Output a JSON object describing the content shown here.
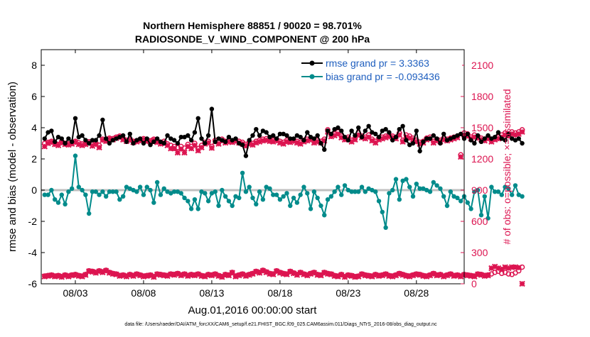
{
  "chart_data": {
    "type": "line",
    "title_line1": "Northern Hemisphere 88851 / 90020 = 98.701%",
    "title_line2": "RADIOSONDE_V_WIND_COMPONENT @ 200 hPa",
    "xlabel": "Aug.01,2016 00:00:00 start",
    "ylabel_left": "rmse and bias (model - observation)",
    "ylabel_right": "# of obs: o=possible; ×=assimilated",
    "footnote": "data file: /Users/raeder/DAI/ATM_forcXX/CAM6_setup/f.e21.FHIST_BGC.f09_025.CAM6assim.011/Diags_NTrS_2016-08/obs_diag_output.nc",
    "x_range_days": [
      0.5,
      31.5
    ],
    "x_ticks": [
      {
        "day": 3,
        "label": "08/03"
      },
      {
        "day": 8,
        "label": "08/08"
      },
      {
        "day": 13,
        "label": "08/13"
      },
      {
        "day": 18,
        "label": "08/18"
      },
      {
        "day": 23,
        "label": "08/23"
      },
      {
        "day": 28,
        "label": "08/28"
      }
    ],
    "ylim_left": [
      -6,
      9
    ],
    "y_ticks_left": [
      -6,
      -4,
      -2,
      0,
      2,
      4,
      6,
      8
    ],
    "ylim_right": [
      0,
      2250
    ],
    "y_ticks_right": [
      0,
      300,
      600,
      900,
      1200,
      1500,
      1800,
      2100
    ],
    "x_start_day": 0.75,
    "x_step_day": 0.25,
    "legend": [
      {
        "label": "rmse grand pr = 3.3363",
        "color": "#000000"
      },
      {
        "label": "bias grand pr = -0.093436",
        "color": "#008b8b"
      }
    ],
    "colors": {
      "rmse": "#000000",
      "bias": "#008b8b",
      "obs": "#dc1450",
      "zero_line": "#bfbfbf",
      "legend_text": "#1f5fbf"
    },
    "rmse": [
      3.3,
      3.7,
      3.8,
      3.1,
      3.4,
      3.3,
      3.0,
      3.3,
      3.1,
      4.6,
      3.4,
      3.5,
      3.2,
      3.0,
      3.2,
      3.2,
      3.5,
      4.5,
      3.3,
      3.0,
      3.2,
      3.3,
      3.4,
      3.5,
      3.1,
      3.6,
      3.0,
      3.2,
      3.3,
      3.0,
      3.3,
      2.9,
      3.1,
      3.3,
      3.1,
      3.0,
      3.5,
      3.3,
      3.2,
      3.0,
      3.4,
      3.4,
      3.5,
      3.2,
      3.7,
      4.6,
      3.3,
      3.0,
      3.5,
      5.2,
      3.1,
      3.3,
      3.2,
      3.1,
      3.4,
      3.2,
      3.3,
      3.0,
      2.9,
      2.2,
      3.2,
      3.5,
      3.9,
      3.5,
      3.8,
      3.7,
      3.4,
      3.5,
      3.3,
      3.6,
      3.6,
      3.5,
      3.3,
      3.3,
      3.5,
      3.4,
      3.2,
      3.7,
      3.4,
      3.3,
      3.5,
      3.0,
      2.6,
      3.8,
      3.6,
      3.9,
      4.0,
      3.8,
      3.4,
      3.2,
      3.8,
      3.5,
      4.0,
      3.4,
      3.8,
      4.1,
      3.7,
      3.6,
      3.4,
      3.8,
      3.9,
      3.7,
      3.2,
      3.4,
      3.9,
      4.1,
      3.2,
      2.9,
      3.0,
      3.8,
      2.5,
      3.1,
      3.3,
      3.3,
      3.5,
      3.3,
      3.0,
      3.6,
      3.2,
      3.3,
      3.4,
      3.5,
      3.6,
      3.3,
      3.6,
      3.2,
      3.0,
      3.5,
      3.1,
      3.3,
      3.5,
      3.3,
      3.4,
      3.7,
      3.3,
      3.2,
      3.6,
      3.3,
      3.2,
      3.3,
      3.0
    ],
    "bias": [
      -0.3,
      -0.3,
      0.0,
      -0.6,
      -0.8,
      -0.3,
      -0.9,
      -0.1,
      0.1,
      2.2,
      0.2,
      0.0,
      -0.3,
      -1.5,
      -0.1,
      -0.1,
      -0.3,
      -0.1,
      -0.4,
      -0.1,
      -0.1,
      -0.1,
      -0.6,
      -0.4,
      0.2,
      0.1,
      0.0,
      -0.1,
      0.2,
      -0.3,
      0.2,
      0.0,
      -0.8,
      0.5,
      -0.3,
      0.1,
      -0.1,
      -0.2,
      -0.1,
      -0.1,
      -0.2,
      -0.5,
      -0.7,
      -1.2,
      -0.6,
      -1.2,
      -0.1,
      -0.2,
      -0.7,
      -0.2,
      -0.1,
      -1.0,
      0.0,
      -0.4,
      -0.7,
      -1.0,
      -0.4,
      -0.5,
      1.1,
      -0.1,
      0.2,
      -0.5,
      -0.9,
      -0.1,
      -0.6,
      0.2,
      0.1,
      -0.3,
      -0.3,
      -0.6,
      -0.4,
      -0.2,
      -1.0,
      -0.5,
      -0.8,
      -0.3,
      0.2,
      -0.2,
      -1.2,
      -0.1,
      -0.5,
      -1.0,
      -1.6,
      -0.6,
      -0.4,
      -0.1,
      0.2,
      -0.3,
      0.3,
      0.0,
      -0.1,
      -0.1,
      -0.1,
      0.2,
      -0.1,
      0.1,
      0.0,
      -0.1,
      -0.7,
      -1.4,
      -2.4,
      -0.2,
      0.0,
      0.7,
      -0.6,
      0.6,
      0.7,
      0.2,
      -0.4,
      0.4,
      0.1,
      0.1,
      0.0,
      -0.1,
      0.5,
      0.3,
      0.1,
      -0.4,
      -1.0,
      -0.1,
      -0.4,
      -0.5,
      -0.7,
      -0.4,
      -0.8,
      -1.2,
      -0.1,
      0.0,
      -1.6,
      -0.4,
      -1.8,
      0.2,
      -0.1,
      -0.1,
      -0.3,
      0.2,
      0.1,
      -0.3,
      0.3,
      -0.3,
      -0.4
    ],
    "obs_possible": [
      1350,
      1360,
      1370,
      1355,
      1340,
      1365,
      1350,
      1345,
      1360,
      1370,
      1355,
      1345,
      1350,
      1365,
      1340,
      1350,
      1330,
      1390,
      1380,
      1400,
      1395,
      1410,
      1420,
      1395,
      1380,
      1390,
      1370,
      1375,
      1385,
      1395,
      1380,
      1375,
      1390,
      1375,
      1360,
      1370,
      1345,
      1330,
      1320,
      1310,
      1320,
      1305,
      1340,
      1320,
      1350,
      1300,
      1330,
      1360,
      1370,
      1320,
      1380,
      1360,
      1390,
      1370,
      1380,
      1375,
      1385,
      1370,
      1360,
      1340,
      1360,
      1350,
      1370,
      1380,
      1390,
      1395,
      1385,
      1380,
      1390,
      1370,
      1360,
      1380,
      1375,
      1385,
      1370,
      1360,
      1380,
      1390,
      1400,
      1370,
      1380,
      1370,
      1390,
      1480,
      1430,
      1440,
      1460,
      1420,
      1400,
      1410,
      1380,
      1400,
      1450,
      1420,
      1410,
      1430,
      1390,
      1370,
      1400,
      1410,
      1420,
      1430,
      1420,
      1410,
      1450,
      1380,
      1430,
      1420,
      1400,
      1380,
      1360,
      1370,
      1400,
      1410,
      1370,
      1390,
      1380,
      1400,
      1390,
      1400,
      1410,
      1420,
      1240,
      1450,
      1440,
      1410,
      1430,
      1420,
      1400,
      1390,
      1410,
      1380,
      1400,
      1410,
      1430,
      1450,
      1440,
      1460,
      1450,
      1460,
      1480
    ],
    "obs_assimilated": [
      1320,
      1350,
      1360,
      1340,
      1330,
      1355,
      1340,
      1335,
      1345,
      1360,
      1340,
      1330,
      1340,
      1355,
      1325,
      1340,
      1310,
      1380,
      1370,
      1390,
      1385,
      1400,
      1410,
      1385,
      1370,
      1380,
      1360,
      1365,
      1375,
      1385,
      1370,
      1365,
      1380,
      1360,
      1345,
      1355,
      1330,
      1300,
      1300,
      1260,
      1295,
      1260,
      1320,
      1300,
      1330,
      1280,
      1310,
      1345,
      1355,
      1305,
      1365,
      1345,
      1375,
      1355,
      1365,
      1360,
      1370,
      1355,
      1345,
      1325,
      1345,
      1335,
      1355,
      1365,
      1375,
      1380,
      1370,
      1365,
      1375,
      1355,
      1345,
      1365,
      1360,
      1370,
      1355,
      1345,
      1365,
      1375,
      1385,
      1355,
      1365,
      1355,
      1375,
      1460,
      1415,
      1425,
      1440,
      1405,
      1385,
      1395,
      1365,
      1385,
      1430,
      1405,
      1395,
      1410,
      1375,
      1355,
      1385,
      1395,
      1405,
      1415,
      1405,
      1395,
      1430,
      1365,
      1410,
      1400,
      1385,
      1365,
      1345,
      1355,
      1385,
      1395,
      1355,
      1375,
      1365,
      1385,
      1375,
      1385,
      1395,
      1405,
      1220,
      1430,
      1420,
      1395,
      1410,
      1400,
      1385,
      1375,
      1395,
      1365,
      1385,
      1395,
      1410,
      1430,
      1420,
      1440,
      1430,
      1440,
      1460
    ],
    "obs_bottom_possible": [
      75,
      80,
      85,
      75,
      80,
      70,
      85,
      75,
      85,
      90,
      80,
      75,
      90,
      125,
      120,
      110,
      125,
      115,
      130,
      110,
      100,
      95,
      80,
      85,
      75,
      90,
      80,
      95,
      85,
      75,
      80,
      85,
      70,
      95,
      90,
      85,
      80,
      95,
      90,
      100,
      85,
      95,
      80,
      90,
      85,
      95,
      80,
      75,
      90,
      85,
      95,
      80,
      70,
      90,
      85,
      110,
      75,
      85,
      95,
      80,
      90,
      100,
      120,
      110,
      130,
      115,
      100,
      95,
      125,
      110,
      100,
      95,
      120,
      105,
      90,
      110,
      95,
      85,
      100,
      110,
      90,
      85,
      110,
      100,
      95,
      80,
      75,
      90,
      70,
      85,
      80,
      70,
      75,
      95,
      85,
      80,
      75,
      90,
      80,
      85,
      95,
      80,
      75,
      85,
      100,
      90,
      80,
      75,
      85,
      95,
      90,
      80,
      75,
      85,
      100,
      85,
      90,
      75,
      85,
      95,
      80,
      85,
      75,
      90,
      85,
      80,
      75,
      95,
      90,
      80,
      85,
      95,
      110,
      120,
      100,
      110,
      95,
      90,
      105,
      125,
      160
    ],
    "obs_bottom_assimilated": [
      70,
      75,
      80,
      70,
      75,
      65,
      80,
      70,
      80,
      85,
      75,
      70,
      85,
      120,
      115,
      105,
      120,
      110,
      125,
      105,
      95,
      90,
      75,
      80,
      70,
      85,
      75,
      90,
      80,
      70,
      75,
      80,
      65,
      90,
      85,
      80,
      75,
      90,
      85,
      95,
      80,
      90,
      75,
      85,
      80,
      90,
      75,
      70,
      85,
      80,
      90,
      75,
      65,
      85,
      80,
      105,
      70,
      80,
      90,
      75,
      85,
      95,
      115,
      105,
      125,
      110,
      95,
      90,
      120,
      105,
      95,
      90,
      115,
      100,
      85,
      105,
      90,
      80,
      95,
      105,
      85,
      80,
      105,
      95,
      90,
      75,
      70,
      85,
      65,
      80,
      75,
      65,
      70,
      90,
      80,
      75,
      70,
      85,
      75,
      80,
      90,
      75,
      70,
      80,
      95,
      85,
      75,
      70,
      80,
      90,
      85,
      75,
      70,
      80,
      95,
      80,
      85,
      70,
      80,
      90,
      75,
      80,
      70,
      85,
      80,
      75,
      70,
      90,
      85,
      75,
      80,
      150,
      165,
      150,
      140,
      160,
      150,
      160,
      160,
      155,
      0
    ]
  }
}
